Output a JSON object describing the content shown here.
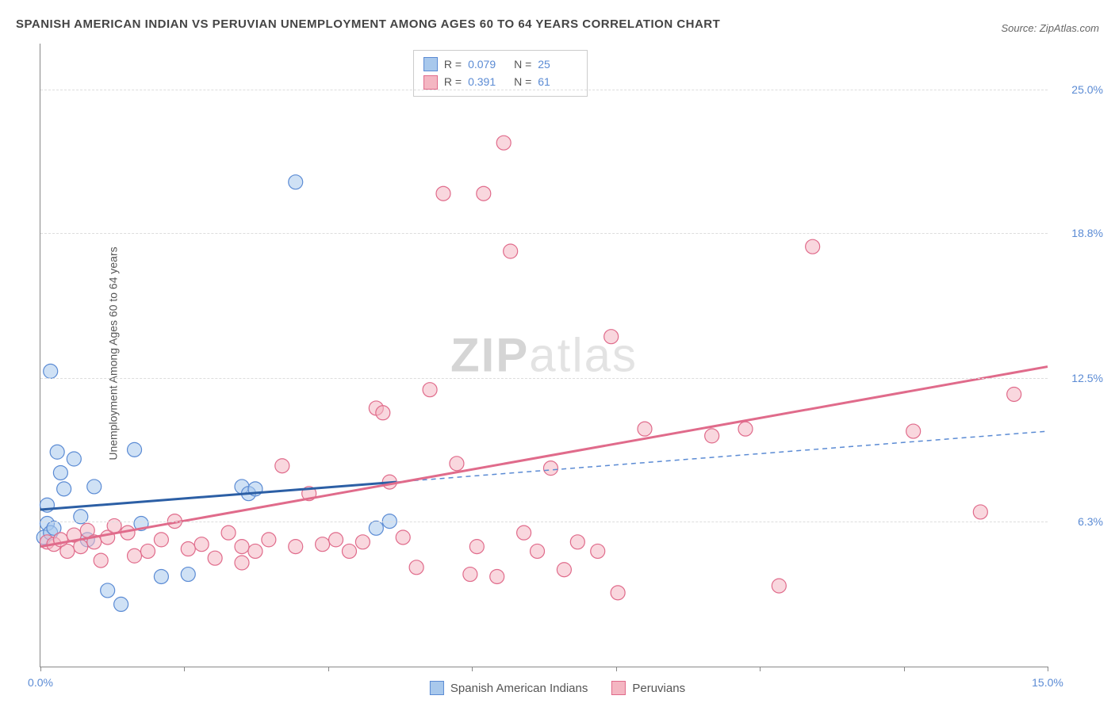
{
  "title": "SPANISH AMERICAN INDIAN VS PERUVIAN UNEMPLOYMENT AMONG AGES 60 TO 64 YEARS CORRELATION CHART",
  "source": "Source: ZipAtlas.com",
  "y_axis_label": "Unemployment Among Ages 60 to 64 years",
  "watermark_bold": "ZIP",
  "watermark_light": "atlas",
  "chart": {
    "type": "scatter",
    "xlim": [
      0,
      15
    ],
    "ylim": [
      0,
      27
    ],
    "x_ticks": [
      0,
      2.14,
      4.29,
      6.43,
      8.57,
      10.71,
      12.86,
      15
    ],
    "x_tick_labels_shown": {
      "0": "0.0%",
      "15": "15.0%"
    },
    "y_gridlines": [
      6.3,
      12.5,
      18.8,
      25.0
    ],
    "y_tick_labels": [
      "6.3%",
      "12.5%",
      "18.8%",
      "25.0%"
    ],
    "background_color": "#ffffff",
    "grid_color": "#dddddd",
    "axis_color": "#888888",
    "tick_label_color": "#5b8bd4",
    "series": [
      {
        "name": "Spanish American Indians",
        "color_fill": "#a8c8ec",
        "color_stroke": "#5b8bd4",
        "marker_radius": 9,
        "fill_opacity": 0.55,
        "R": "0.079",
        "N": "25",
        "trend": {
          "solid": {
            "x1": 0,
            "y1": 6.8,
            "x2": 5.3,
            "y2": 8.0,
            "color": "#2c5fa5",
            "width": 3
          },
          "dashed": {
            "x1": 5.3,
            "y1": 8.0,
            "x2": 15,
            "y2": 10.2,
            "color": "#5b8bd4",
            "width": 1.5,
            "dash": "6,5"
          }
        },
        "points": [
          [
            0.05,
            5.6
          ],
          [
            0.1,
            6.2
          ],
          [
            0.15,
            5.8
          ],
          [
            0.2,
            6.0
          ],
          [
            0.1,
            7.0
          ],
          [
            0.25,
            9.3
          ],
          [
            0.3,
            8.4
          ],
          [
            0.35,
            7.7
          ],
          [
            0.15,
            12.8
          ],
          [
            0.5,
            9.0
          ],
          [
            0.6,
            6.5
          ],
          [
            0.7,
            5.5
          ],
          [
            0.8,
            7.8
          ],
          [
            1.0,
            3.3
          ],
          [
            1.2,
            2.7
          ],
          [
            1.4,
            9.4
          ],
          [
            1.5,
            6.2
          ],
          [
            1.8,
            3.9
          ],
          [
            2.2,
            4.0
          ],
          [
            3.0,
            7.8
          ],
          [
            3.1,
            7.5
          ],
          [
            3.2,
            7.7
          ],
          [
            3.8,
            21.0
          ],
          [
            5.0,
            6.0
          ],
          [
            5.2,
            6.3
          ]
        ]
      },
      {
        "name": "Peruvians",
        "color_fill": "#f4b6c2",
        "color_stroke": "#e06b8b",
        "marker_radius": 9,
        "fill_opacity": 0.55,
        "R": "0.391",
        "N": "61",
        "trend": {
          "solid": {
            "x1": 0,
            "y1": 5.2,
            "x2": 15,
            "y2": 13.0,
            "color": "#e06b8b",
            "width": 3
          }
        },
        "points": [
          [
            0.1,
            5.4
          ],
          [
            0.2,
            5.3
          ],
          [
            0.3,
            5.5
          ],
          [
            0.4,
            5.0
          ],
          [
            0.5,
            5.7
          ],
          [
            0.6,
            5.2
          ],
          [
            0.7,
            5.9
          ],
          [
            0.8,
            5.4
          ],
          [
            0.9,
            4.6
          ],
          [
            1.0,
            5.6
          ],
          [
            1.1,
            6.1
          ],
          [
            1.3,
            5.8
          ],
          [
            1.4,
            4.8
          ],
          [
            1.6,
            5.0
          ],
          [
            1.8,
            5.5
          ],
          [
            2.0,
            6.3
          ],
          [
            2.2,
            5.1
          ],
          [
            2.4,
            5.3
          ],
          [
            2.6,
            4.7
          ],
          [
            2.8,
            5.8
          ],
          [
            3.0,
            5.2
          ],
          [
            3.2,
            5.0
          ],
          [
            3.4,
            5.5
          ],
          [
            3.6,
            8.7
          ],
          [
            3.8,
            5.2
          ],
          [
            4.0,
            7.5
          ],
          [
            4.2,
            5.3
          ],
          [
            4.4,
            5.5
          ],
          [
            4.6,
            5.0
          ],
          [
            4.8,
            5.4
          ],
          [
            5.0,
            11.2
          ],
          [
            5.1,
            11.0
          ],
          [
            5.2,
            8.0
          ],
          [
            5.4,
            5.6
          ],
          [
            5.6,
            4.3
          ],
          [
            5.8,
            12.0
          ],
          [
            6.0,
            20.5
          ],
          [
            6.2,
            8.8
          ],
          [
            6.4,
            4.0
          ],
          [
            6.6,
            20.5
          ],
          [
            6.8,
            3.9
          ],
          [
            6.9,
            22.7
          ],
          [
            7.0,
            18.0
          ],
          [
            7.2,
            5.8
          ],
          [
            7.4,
            5.0
          ],
          [
            7.6,
            8.6
          ],
          [
            7.8,
            4.2
          ],
          [
            8.0,
            5.4
          ],
          [
            8.3,
            5.0
          ],
          [
            8.5,
            14.3
          ],
          [
            8.6,
            3.2
          ],
          [
            9.0,
            10.3
          ],
          [
            10.0,
            10.0
          ],
          [
            10.5,
            10.3
          ],
          [
            11.0,
            3.5
          ],
          [
            11.5,
            18.2
          ],
          [
            14.0,
            6.7
          ],
          [
            14.5,
            11.8
          ],
          [
            13.0,
            10.2
          ],
          [
            6.5,
            5.2
          ],
          [
            3.0,
            4.5
          ]
        ]
      }
    ]
  },
  "legend": {
    "items": [
      {
        "label": "Spanish American Indians",
        "fill": "#a8c8ec",
        "stroke": "#5b8bd4"
      },
      {
        "label": "Peruvians",
        "fill": "#f4b6c2",
        "stroke": "#e06b8b"
      }
    ]
  },
  "stats_box": {
    "rows": [
      {
        "fill": "#a8c8ec",
        "stroke": "#5b8bd4",
        "R": "0.079",
        "N": "25"
      },
      {
        "fill": "#f4b6c2",
        "stroke": "#e06b8b",
        "R": "0.391",
        "N": "61"
      }
    ]
  }
}
